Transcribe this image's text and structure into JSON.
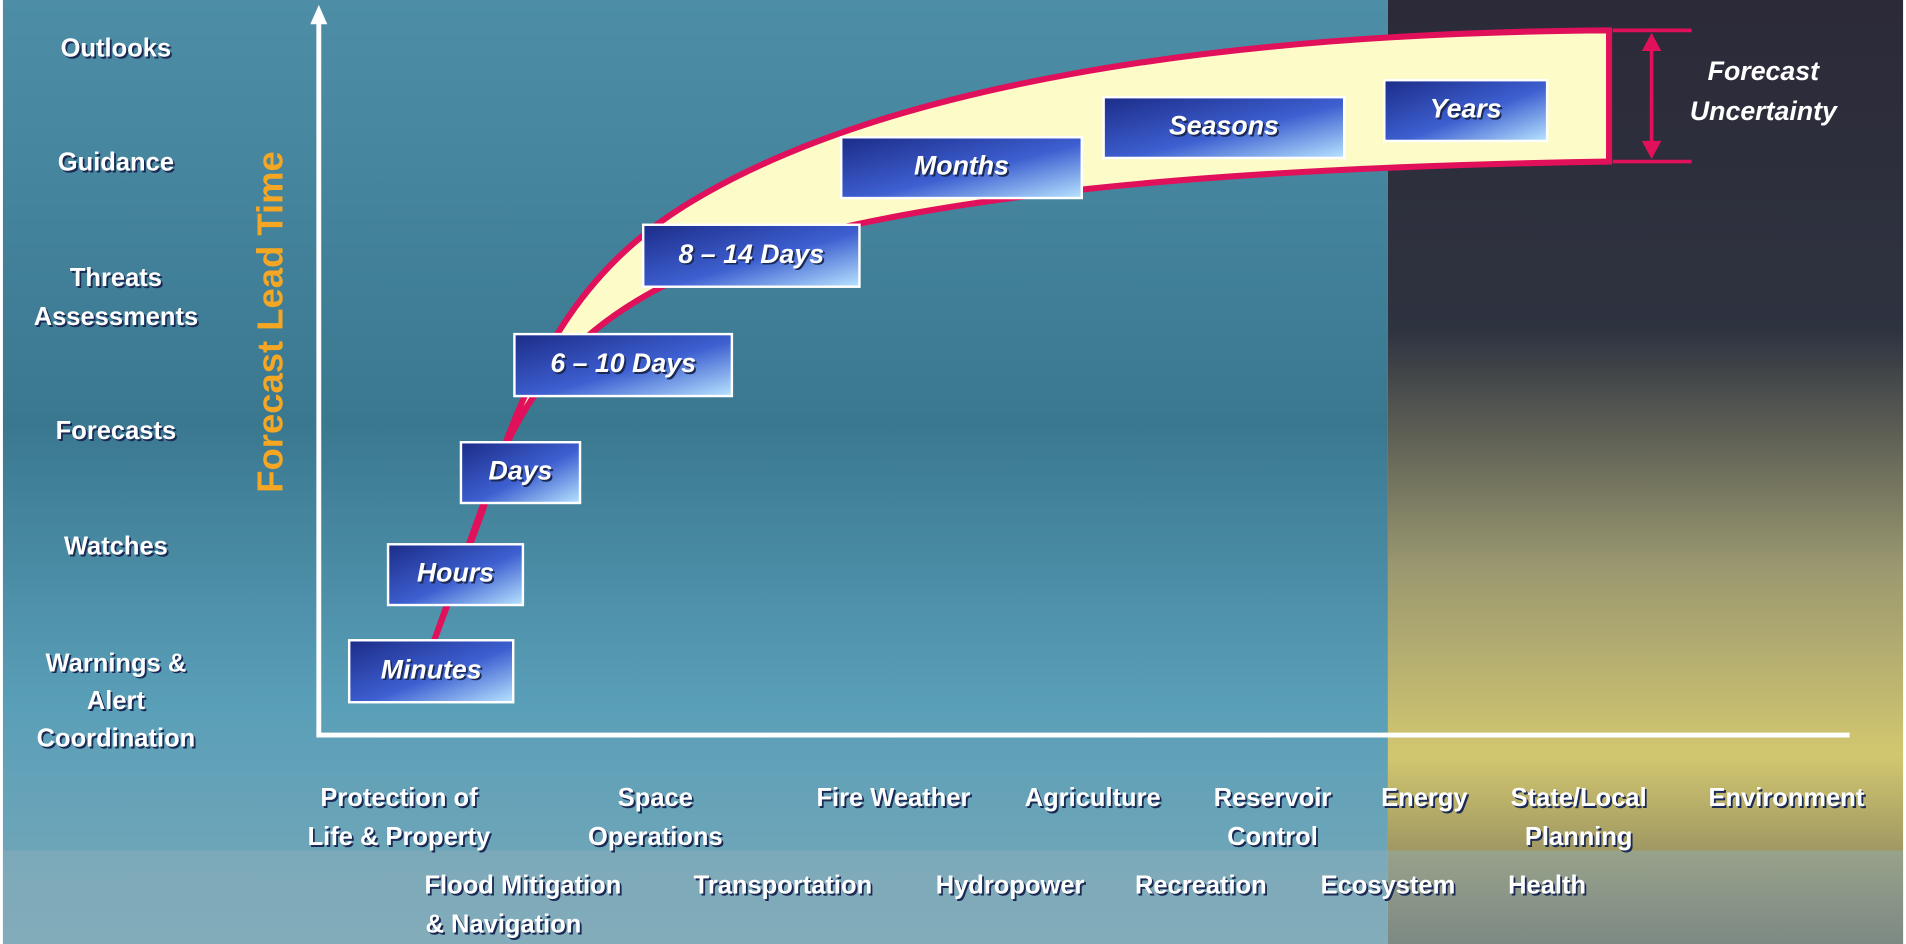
{
  "axis_title": "Forecast Lead Time",
  "products": [
    [
      "Outlooks"
    ],
    [
      "Guidance"
    ],
    [
      "Threats",
      "Assessments"
    ],
    [
      "Forecasts"
    ],
    [
      "Watches"
    ],
    [
      "Warnings &",
      "Alert",
      "Coordination"
    ]
  ],
  "lead_times": [
    "Minutes",
    "Hours",
    "Days",
    "6 – 10 Days",
    "8 – 14 Days",
    "Months",
    "Seasons",
    "Years"
  ],
  "uncertainty": [
    "Forecast",
    "Uncertainty"
  ],
  "sectors_row1": [
    [
      "Protection of",
      "Life & Property"
    ],
    [
      "Space",
      "Operations"
    ],
    [
      "Fire Weather"
    ],
    [
      "Agriculture"
    ],
    [
      "Reservoir",
      "Control"
    ],
    [
      "Energy"
    ],
    [
      "State/Local",
      "Planning"
    ],
    [
      "Environment"
    ]
  ],
  "sectors_row2": [
    [
      "Flood Mitigation",
      "& Navigation"
    ],
    [
      "Transportation"
    ],
    [
      "Hydropower"
    ],
    [
      "Recreation"
    ],
    [
      "Ecosystem"
    ],
    [
      "Health"
    ]
  ]
}
